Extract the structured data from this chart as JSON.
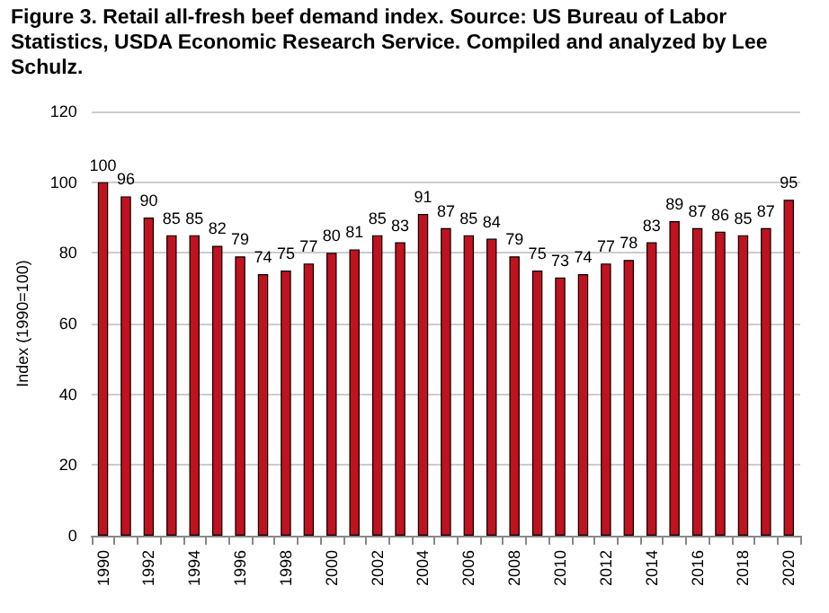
{
  "chart_data": {
    "type": "bar",
    "title": "Figure 3. Retail all-fresh beef demand index. Source: US Bureau of Labor Statistics, USDA Economic Research Service. Compiled and analyzed by Lee Schulz.",
    "ylabel": "Index (1990=100)",
    "categories": [
      "1990",
      null,
      "1992",
      null,
      "1994",
      null,
      "1996",
      null,
      "1998",
      null,
      "2000",
      null,
      "2002",
      null,
      "2004",
      null,
      "2006",
      null,
      "2008",
      null,
      "2010",
      null,
      "2012",
      null,
      "2014",
      null,
      "2016",
      null,
      "2018",
      null,
      "2020"
    ],
    "values": [
      100,
      96,
      90,
      85,
      85,
      82,
      79,
      74,
      75,
      77,
      80,
      81,
      85,
      83,
      91,
      87,
      85,
      84,
      79,
      75,
      73,
      74,
      77,
      78,
      83,
      89,
      87,
      86,
      85,
      87,
      95
    ],
    "color": "#c1121f",
    "data_labels": true,
    "ylim": [
      0,
      120
    ],
    "yticks": [
      0,
      20,
      40,
      60,
      80,
      100,
      120
    ],
    "grid": "y"
  }
}
